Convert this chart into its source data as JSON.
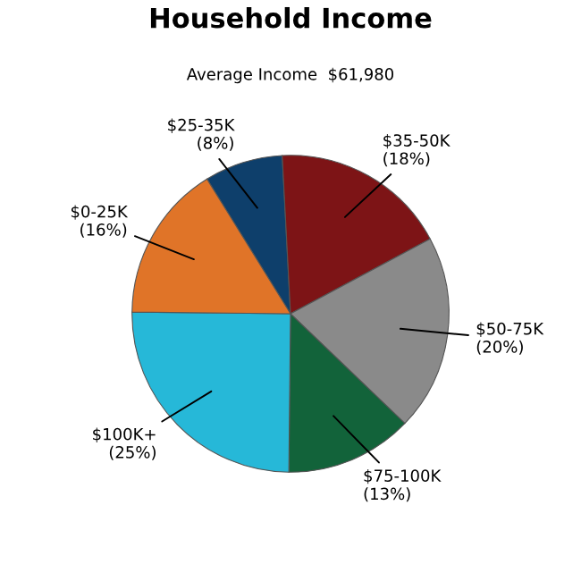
{
  "chart_data": {
    "type": "pie",
    "title": "Household Income",
    "subtitle": "Average Income  $61,980",
    "categories": [
      "$25-35K",
      "$35-50K",
      "$50-75K",
      "$75-100K",
      "$100K+",
      "$0-25K"
    ],
    "values": [
      8,
      18,
      20,
      13,
      25,
      16
    ],
    "value_labels": [
      "(8%)",
      "(18%)",
      "(20%)",
      "(13%)",
      "(25%)",
      "(16%)"
    ],
    "colors": [
      "#0e3f6b",
      "#7d1416",
      "#8a8a8a",
      "#12633a",
      "#26b8d8",
      "#e07428"
    ],
    "legend": false
  }
}
